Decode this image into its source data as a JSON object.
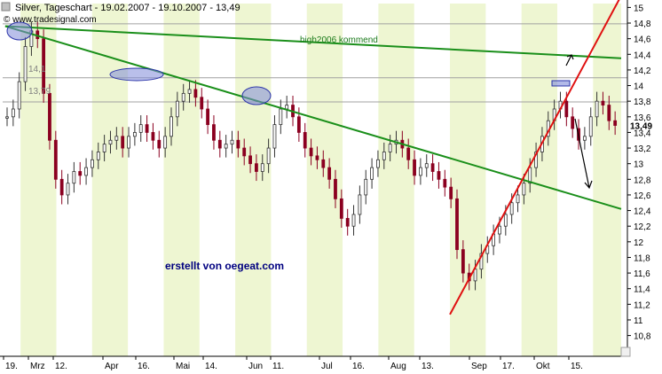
{
  "header": {
    "title": "Silver, Tageschart - 19.02.2007 - 19.10.2007 - 13,49",
    "copyright": "© www.tradesignal.com"
  },
  "annotations": {
    "high_label": "high2006 kommend",
    "credit": "erstellt von oegeat.com",
    "level_a": "14,1",
    "level_b": "13,79",
    "last_price": "13,49"
  },
  "colors": {
    "background": "#ffffff",
    "band": "#eef6d2",
    "axis": "#000000",
    "green_line": "#1a8f1a",
    "red_line": "#e01010",
    "grid": "#d8d8d8",
    "candle_up": "#333333",
    "candle_down": "#8b0020",
    "ellipse": "#7f8ad8",
    "credit": "#000080"
  },
  "chart_data": {
    "type": "candlestick",
    "title": "Silver, Tageschart - 19.02.2007 - 19.10.2007 - 13,49",
    "x_range": [
      "2007-02-19",
      "2007-10-19"
    ],
    "ylim": [
      10.7,
      15.05
    ],
    "y_ticks": [
      "15",
      "14,8",
      "14,6",
      "14,4",
      "14,2",
      "14",
      "13,8",
      "13,6",
      "13,4",
      "13,2",
      "13",
      "12,8",
      "12,6",
      "12,4",
      "12,2",
      "12",
      "11,8",
      "11,6",
      "11,4",
      "11,2",
      "11",
      "10,8"
    ],
    "x_ticks": [
      "19.",
      "Mrz",
      "12.",
      "Apr",
      "16.",
      "Mai",
      "14.",
      "Jun",
      "11.",
      "Jul",
      "16.",
      "Aug",
      "13.",
      "Sep",
      "17.",
      "Okt",
      "15."
    ],
    "last_value": 13.49,
    "close_series": [
      13.6,
      13.7,
      14.05,
      14.5,
      14.7,
      14.6,
      13.9,
      13.3,
      12.8,
      12.6,
      12.75,
      12.9,
      12.85,
      12.95,
      13.05,
      13.15,
      13.25,
      13.3,
      13.35,
      13.2,
      13.35,
      13.4,
      13.5,
      13.4,
      13.3,
      13.2,
      13.35,
      13.6,
      13.8,
      13.9,
      13.95,
      13.85,
      13.7,
      13.5,
      13.3,
      13.2,
      13.25,
      13.3,
      13.2,
      13.1,
      13.0,
      12.9,
      13.0,
      13.2,
      13.5,
      13.7,
      13.75,
      13.6,
      13.4,
      13.2,
      13.1,
      13.05,
      12.95,
      12.8,
      12.55,
      12.3,
      12.2,
      12.35,
      12.6,
      12.8,
      12.95,
      13.05,
      13.15,
      13.25,
      13.3,
      13.2,
      13.05,
      12.85,
      12.95,
      13.0,
      12.9,
      12.8,
      12.7,
      12.55,
      11.9,
      11.6,
      11.5,
      11.65,
      11.85,
      11.95,
      12.1,
      12.2,
      12.35,
      12.5,
      12.6,
      12.75,
      12.95,
      13.15,
      13.35,
      13.55,
      13.7,
      13.8,
      13.6,
      13.45,
      13.3,
      13.35,
      13.6,
      13.8,
      13.75,
      13.55,
      13.49
    ],
    "series": [
      {
        "name": "high2006 kommend",
        "type": "line",
        "points": [
          [
            "2007-02-20",
            14.76
          ],
          [
            "2007-10-19",
            14.35
          ]
        ]
      },
      {
        "type": "line",
        "points": [
          [
            "2007-02-20",
            14.76
          ],
          [
            "2007-10-19",
            12.42
          ]
        ]
      },
      {
        "type": "line",
        "points": [
          [
            "2007-08-13",
            11.07
          ],
          [
            "2007-10-19",
            15.15
          ]
        ]
      }
    ],
    "horizontal_levels": [
      14.79,
      14.1,
      13.79
    ],
    "grid": true
  }
}
